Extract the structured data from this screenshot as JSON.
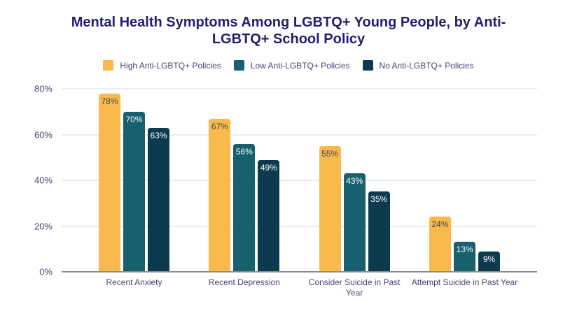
{
  "colors": {
    "background": "#FFFFFF",
    "title_text": "#211F6E",
    "axis_text": "#45457A",
    "gridline": "#D8D8D8",
    "baseline": "#8A8A8A"
  },
  "chart_data": {
    "type": "bar",
    "title": "Mental Health Symptoms Among LGBTQ+ Young People, by Anti-LGBTQ+ School Policy",
    "categories": [
      "Recent Anxiety",
      "Recent Depression",
      "Consider Suicide in Past Year",
      "Attempt Suicide in Past Year"
    ],
    "series": [
      {
        "name": "High Anti-LGBTQ+ Policies",
        "color": "#F9B94C",
        "label_color": "#42464E",
        "values": [
          78,
          67,
          55,
          24
        ]
      },
      {
        "name": "Low Anti-LGBTQ+ Policies",
        "color": "#17606D",
        "label_color": "#FFFFFF",
        "values": [
          70,
          56,
          43,
          13
        ]
      },
      {
        "name": "No Anti-LGBTQ+ Policies",
        "color": "#0C3A4F",
        "label_color": "#FFFFFF",
        "values": [
          63,
          49,
          35,
          9
        ]
      }
    ],
    "value_suffix": "%",
    "ylim": [
      0,
      80
    ],
    "yticks": [
      "0%",
      "20%",
      "40%",
      "60%",
      "80%"
    ],
    "grid": true,
    "legend_position": "top"
  }
}
